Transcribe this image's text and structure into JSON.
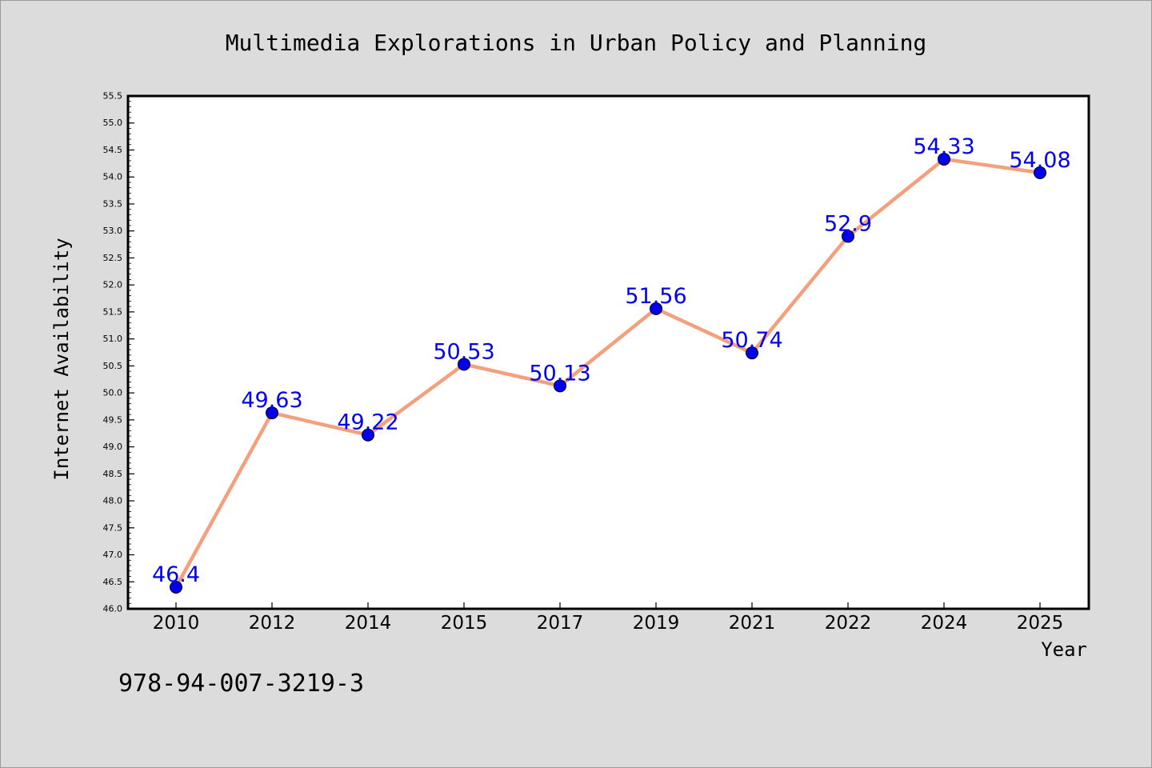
{
  "chart_data": {
    "type": "line",
    "title": "Multimedia Explorations in Urban Policy and Planning",
    "xlabel": "Year",
    "ylabel": "Internet Availability",
    "categories": [
      "2010",
      "2012",
      "2014",
      "2015",
      "2017",
      "2019",
      "2021",
      "2022",
      "2024",
      "2025"
    ],
    "values": [
      46.4,
      49.63,
      49.22,
      50.53,
      50.13,
      51.56,
      50.74,
      52.9,
      54.33,
      54.08
    ],
    "data_labels": [
      "46.4",
      "49.63",
      "49.22",
      "50.53",
      "50.13",
      "51.56",
      "50.74",
      "52.9",
      "54.33",
      "54.08"
    ],
    "ylim": [
      46.0,
      55.5
    ],
    "yticks": [
      "46.0",
      "46.5",
      "47.0",
      "47.5",
      "48.0",
      "48.5",
      "49.0",
      "49.5",
      "50.0",
      "50.5",
      "51.0",
      "51.5",
      "52.0",
      "52.5",
      "53.0",
      "53.5",
      "54.0",
      "54.5",
      "55.0",
      "55.5"
    ],
    "grid": false,
    "line_color": "#f4a07e",
    "marker_color": "#0000ee",
    "label_color": "#0000ee"
  },
  "footer": {
    "isbn": "978-94-007-3219-3"
  }
}
